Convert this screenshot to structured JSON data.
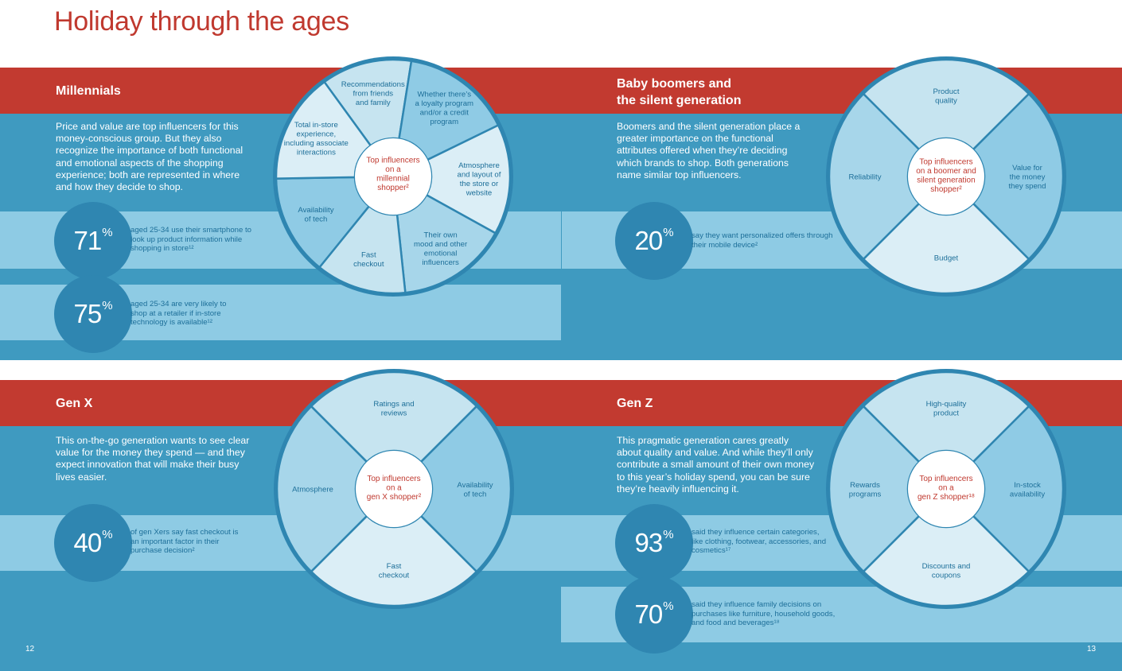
{
  "title": "Holiday through the ages",
  "page_left": "12",
  "page_right": "13",
  "millennials": {
    "heading": "Millennials",
    "body": "Price and value are top influencers for this money-conscious group. But they also recognize the importance of both functional and emotional aspects of the shopping experience; both are represented in where and how they decide to shop.",
    "stats": [
      {
        "value": "71",
        "pct": "%",
        "text": "aged 25-34 use their smartphone to look up product information while shopping in store¹²"
      },
      {
        "value": "75",
        "pct": "%",
        "text": "aged 25-34 are very likely to shop at a retailer if in-store technology is available¹²"
      }
    ],
    "wheel_center": [
      "Top influencers",
      "on a",
      "millennial",
      "shopper²"
    ],
    "wheel_segments": [
      {
        "label": [
          "Recommendations",
          "from friends",
          "and family"
        ]
      },
      {
        "label": [
          "Whether there’s",
          "a loyalty program",
          "and/or a credit",
          "program"
        ]
      },
      {
        "label": [
          "Atmosphere",
          "and layout of",
          "the store or",
          "website"
        ]
      },
      {
        "label": [
          "Their own",
          "mood and other",
          "emotional",
          "influencers"
        ]
      },
      {
        "label": [
          "Fast",
          "checkout"
        ]
      },
      {
        "label": [
          "Availability",
          "of tech"
        ]
      },
      {
        "label": [
          "Total in-store",
          "experience,",
          "including associate",
          "interactions"
        ]
      }
    ]
  },
  "boomers": {
    "heading_line1": "Baby boomers and",
    "heading_line2": "the silent generation",
    "body": "Boomers and the silent generation place a greater importance on the functional attributes offered when they’re deciding which brands to shop. Both generations name similar top influencers.",
    "stats": [
      {
        "value": "20",
        "pct": "%",
        "text": "say they want personalized offers through their mobile device²"
      }
    ],
    "wheel_center": [
      "Top influencers",
      "on a boomer and",
      "silent generation",
      "shopper²"
    ],
    "wheel_segments": [
      {
        "label": [
          "Product",
          "quality"
        ]
      },
      {
        "label": [
          "Value for",
          "the money",
          "they spend"
        ]
      },
      {
        "label": [
          "Budget"
        ]
      },
      {
        "label": [
          "Reliability"
        ]
      }
    ]
  },
  "genx": {
    "heading": "Gen X",
    "body": "This on-the-go generation wants to see clear value for the money they spend — and they expect innovation that will make their busy lives easier.",
    "stats": [
      {
        "value": "40",
        "pct": "%",
        "text": "of gen Xers say fast checkout is an important factor in their purchase decision²"
      }
    ],
    "wheel_center": [
      "Top influencers",
      "on a",
      "gen X shopper²"
    ],
    "wheel_segments": [
      {
        "label": [
          "Ratings and",
          "reviews"
        ]
      },
      {
        "label": [
          "Availability",
          "of tech"
        ]
      },
      {
        "label": [
          "Fast",
          "checkout"
        ]
      },
      {
        "label": [
          "Atmosphere"
        ]
      }
    ]
  },
  "genz": {
    "heading": "Gen Z",
    "body": "This pragmatic generation cares greatly about quality and value. And while they’ll only contribute a small amount of their own money to this year’s holiday spend, you can be sure they’re heavily influencing it.",
    "stats": [
      {
        "value": "93",
        "pct": "%",
        "text": "said they influence certain categories, like clothing, footwear, accessories, and cosmetics¹⁷"
      },
      {
        "value": "70",
        "pct": "%",
        "text": "said they influence family decisions on purchases like furniture, household goods, and food and beverages¹⁸"
      }
    ],
    "wheel_center": [
      "Top influencers",
      "on a",
      "gen Z shopper¹⁸"
    ],
    "wheel_segments": [
      {
        "label": [
          "High-quality",
          "product"
        ]
      },
      {
        "label": [
          "In-stock",
          "availability"
        ]
      },
      {
        "label": [
          "Discounts and",
          "coupons"
        ]
      },
      {
        "label": [
          "Rewards",
          "programs"
        ]
      }
    ]
  },
  "colors": {
    "red": "#c23a30",
    "blue": "#3f9ac0",
    "light_strip": "#8ecbe4",
    "stat_circle": "#2f86b1",
    "wheel_outer": "#2f86b1",
    "segment_shades": [
      "#c6e4f0",
      "#8fcbe5",
      "#dbeef6",
      "#a7d6ea"
    ]
  }
}
